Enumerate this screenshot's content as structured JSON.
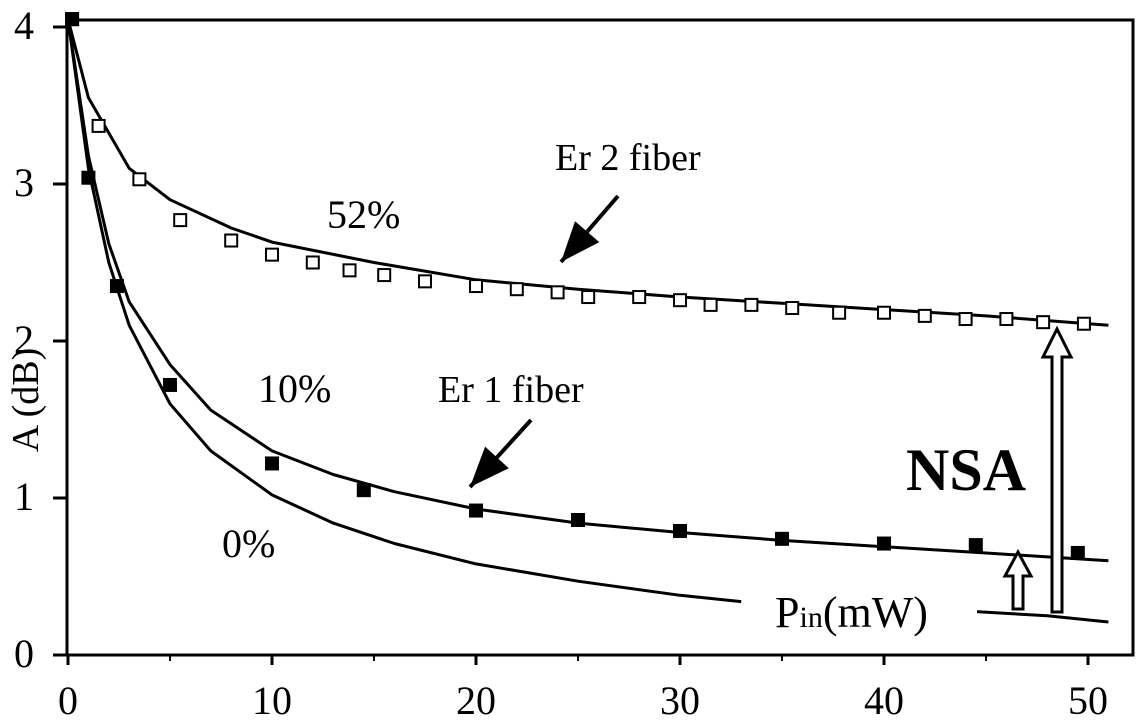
{
  "chart_data": {
    "type": "scatter",
    "title": "",
    "xlabel": "P_in(mW)",
    "xlabel_main": "P",
    "xlabel_sub": "in",
    "xlabel_unit": "(mW)",
    "ylabel": "A (dB)",
    "xlim": [
      0,
      52
    ],
    "ylim": [
      0,
      4.2
    ],
    "grid": false,
    "x_ticks": [
      0,
      10,
      20,
      30,
      40,
      50
    ],
    "y_ticks": [
      0,
      1,
      2,
      3,
      4
    ],
    "series": [
      {
        "name": "Er 2 fiber",
        "marker": "open-square",
        "points": [
          [
            0.2,
            4.05
          ],
          [
            1.5,
            3.37
          ],
          [
            3.5,
            3.03
          ],
          [
            5.5,
            2.77
          ],
          [
            8,
            2.64
          ],
          [
            10,
            2.55
          ],
          [
            12,
            2.5
          ],
          [
            13.8,
            2.45
          ],
          [
            15.5,
            2.42
          ],
          [
            17.5,
            2.38
          ],
          [
            20,
            2.35
          ],
          [
            22,
            2.33
          ],
          [
            24,
            2.31
          ],
          [
            25.5,
            2.28
          ],
          [
            28,
            2.28
          ],
          [
            30,
            2.26
          ],
          [
            31.5,
            2.23
          ],
          [
            33.5,
            2.23
          ],
          [
            35.5,
            2.21
          ],
          [
            37.8,
            2.18
          ],
          [
            40,
            2.18
          ],
          [
            42,
            2.16
          ],
          [
            44,
            2.14
          ],
          [
            46,
            2.14
          ],
          [
            47.8,
            2.12
          ],
          [
            49.8,
            2.11
          ]
        ]
      },
      {
        "name": "Er 1 fiber",
        "marker": "filled-square",
        "points": [
          [
            0.2,
            4.05
          ],
          [
            1,
            3.04
          ],
          [
            2.4,
            2.35
          ],
          [
            5,
            1.72
          ],
          [
            10,
            1.22
          ],
          [
            14.5,
            1.05
          ],
          [
            20,
            0.92
          ],
          [
            25,
            0.86
          ],
          [
            30,
            0.79
          ],
          [
            35,
            0.74
          ],
          [
            40,
            0.71
          ],
          [
            44.5,
            0.7
          ],
          [
            49.5,
            0.65
          ]
        ]
      }
    ],
    "curves": [
      {
        "label": "52%",
        "points": [
          [
            0,
            4.05
          ],
          [
            1,
            3.55
          ],
          [
            3,
            3.1
          ],
          [
            5,
            2.9
          ],
          [
            8,
            2.72
          ],
          [
            10,
            2.63
          ],
          [
            15,
            2.5
          ],
          [
            20,
            2.39
          ],
          [
            25,
            2.33
          ],
          [
            30,
            2.28
          ],
          [
            35,
            2.24
          ],
          [
            40,
            2.2
          ],
          [
            45,
            2.16
          ],
          [
            51,
            2.1
          ]
        ]
      },
      {
        "label": "10%",
        "points": [
          [
            0,
            4.05
          ],
          [
            1,
            3.18
          ],
          [
            2,
            2.62
          ],
          [
            3,
            2.25
          ],
          [
            5,
            1.85
          ],
          [
            7,
            1.56
          ],
          [
            10,
            1.3
          ],
          [
            13,
            1.15
          ],
          [
            16,
            1.04
          ],
          [
            20,
            0.93
          ],
          [
            25,
            0.84
          ],
          [
            30,
            0.78
          ],
          [
            35,
            0.73
          ],
          [
            40,
            0.69
          ],
          [
            45,
            0.65
          ],
          [
            51,
            0.6
          ]
        ]
      },
      {
        "label": "0%",
        "points": [
          [
            0,
            4.05
          ],
          [
            1,
            3.1
          ],
          [
            2,
            2.5
          ],
          [
            3,
            2.1
          ],
          [
            5,
            1.6
          ],
          [
            7,
            1.3
          ],
          [
            10,
            1.02
          ],
          [
            13,
            0.84
          ],
          [
            16,
            0.71
          ],
          [
            20,
            0.58
          ],
          [
            25,
            0.47
          ],
          [
            30,
            0.38
          ],
          [
            33,
            0.34
          ]
        ]
      },
      {
        "label": "",
        "points": [
          [
            44,
            0.28
          ],
          [
            48,
            0.25
          ],
          [
            51,
            0.21
          ]
        ]
      }
    ],
    "annotations": {
      "label_52": "52%",
      "label_10": "10%",
      "label_0": "0%",
      "er2": "Er 2 fiber",
      "er1": "Er 1 fiber",
      "nsa": "NSA"
    }
  }
}
